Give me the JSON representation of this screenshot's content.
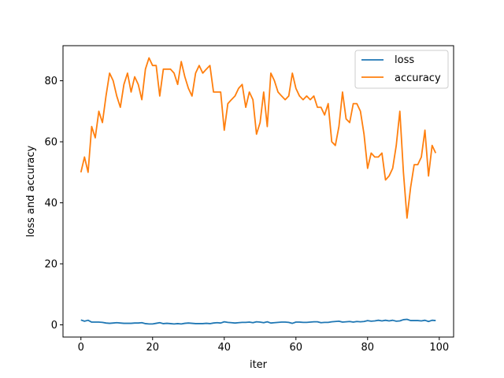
{
  "chart_data": {
    "type": "line",
    "title": "",
    "xlabel": "iter",
    "ylabel": "loss and accuracy",
    "xlim": [
      -5,
      104
    ],
    "ylim": [
      -4,
      91.5
    ],
    "xticks": [
      0,
      20,
      40,
      60,
      80,
      100
    ],
    "yticks": [
      0,
      20,
      40,
      60,
      80
    ],
    "grid": false,
    "legend_position": "top-right",
    "series": [
      {
        "name": "loss",
        "color": "#1f77b4",
        "x": [
          0,
          1,
          2,
          3,
          4,
          5,
          6,
          7,
          8,
          9,
          10,
          11,
          12,
          13,
          14,
          15,
          16,
          17,
          18,
          19,
          20,
          21,
          22,
          23,
          24,
          25,
          26,
          27,
          28,
          29,
          30,
          31,
          32,
          33,
          34,
          35,
          36,
          37,
          38,
          39,
          40,
          41,
          42,
          43,
          44,
          45,
          46,
          47,
          48,
          49,
          50,
          51,
          52,
          53,
          54,
          55,
          56,
          57,
          58,
          59,
          60,
          61,
          62,
          63,
          64,
          65,
          66,
          67,
          68,
          69,
          70,
          71,
          72,
          73,
          74,
          75,
          76,
          77,
          78,
          79,
          80,
          81,
          82,
          83,
          84,
          85,
          86,
          87,
          88,
          89,
          90,
          91,
          92,
          93,
          94,
          95,
          96,
          97,
          98,
          99
        ],
        "values": [
          1.6,
          1.2,
          1.5,
          0.9,
          0.9,
          0.9,
          0.8,
          0.6,
          0.5,
          0.6,
          0.7,
          0.6,
          0.5,
          0.5,
          0.5,
          0.6,
          0.6,
          0.7,
          0.4,
          0.3,
          0.3,
          0.5,
          0.7,
          0.4,
          0.5,
          0.4,
          0.3,
          0.4,
          0.3,
          0.5,
          0.6,
          0.5,
          0.4,
          0.4,
          0.4,
          0.5,
          0.4,
          0.6,
          0.7,
          0.6,
          1.0,
          0.8,
          0.7,
          0.6,
          0.7,
          0.8,
          0.8,
          0.9,
          0.7,
          1.0,
          0.9,
          0.7,
          1.0,
          0.6,
          0.7,
          0.8,
          0.9,
          0.9,
          0.8,
          0.5,
          0.9,
          0.9,
          0.8,
          0.8,
          0.9,
          1.0,
          1.0,
          0.7,
          0.8,
          0.8,
          1.0,
          1.1,
          1.2,
          0.9,
          1.0,
          1.1,
          0.9,
          1.1,
          1.0,
          1.1,
          1.4,
          1.2,
          1.3,
          1.5,
          1.3,
          1.5,
          1.3,
          1.5,
          1.2,
          1.3,
          1.7,
          1.8,
          1.4,
          1.4,
          1.4,
          1.3,
          1.5,
          1.1,
          1.5,
          1.4
        ]
      },
      {
        "name": "accuracy",
        "color": "#ff7f0e",
        "x": [
          0,
          1,
          2,
          3,
          4,
          5,
          6,
          7,
          8,
          9,
          10,
          11,
          12,
          13,
          14,
          15,
          16,
          17,
          18,
          19,
          20,
          21,
          22,
          23,
          24,
          25,
          26,
          27,
          28,
          29,
          30,
          31,
          32,
          33,
          34,
          35,
          36,
          37,
          38,
          39,
          40,
          41,
          42,
          43,
          44,
          45,
          46,
          47,
          48,
          49,
          50,
          51,
          52,
          53,
          54,
          55,
          56,
          57,
          58,
          59,
          60,
          61,
          62,
          63,
          64,
          65,
          66,
          67,
          68,
          69,
          70,
          71,
          72,
          73,
          74,
          75,
          76,
          77,
          78,
          79,
          80,
          81,
          82,
          83,
          84,
          85,
          86,
          87,
          88,
          89,
          90,
          91,
          92,
          93,
          94,
          95,
          96,
          97,
          98,
          99
        ],
        "values": [
          50,
          55,
          50,
          65,
          61.3,
          70,
          66.3,
          75,
          82.5,
          80,
          75,
          71.3,
          78.8,
          82.5,
          76.3,
          81.3,
          78.8,
          73.8,
          83.8,
          87.5,
          85,
          85,
          75,
          83.8,
          83.8,
          83.8,
          82.5,
          78.8,
          86.3,
          81.3,
          77.5,
          75,
          82.5,
          85,
          82.5,
          83.8,
          85,
          76.3,
          76.3,
          76.3,
          63.8,
          72.5,
          73.8,
          75,
          77.5,
          78.8,
          71.3,
          76.3,
          73.8,
          62.5,
          66.3,
          76.3,
          65,
          82.5,
          80,
          76.3,
          75,
          73.8,
          75,
          82.5,
          77.5,
          75,
          73.8,
          75,
          73.8,
          75,
          71.3,
          71.3,
          68.8,
          72.5,
          60,
          58.8,
          65,
          76.3,
          67.5,
          66.3,
          72.5,
          72.5,
          70,
          62.5,
          51.3,
          56.3,
          55,
          55,
          56.3,
          47.5,
          48.8,
          51.3,
          58.8,
          70,
          50,
          35,
          45,
          52.5,
          52.5,
          55,
          63.8,
          48.8,
          58.8,
          56.3
        ]
      }
    ]
  }
}
